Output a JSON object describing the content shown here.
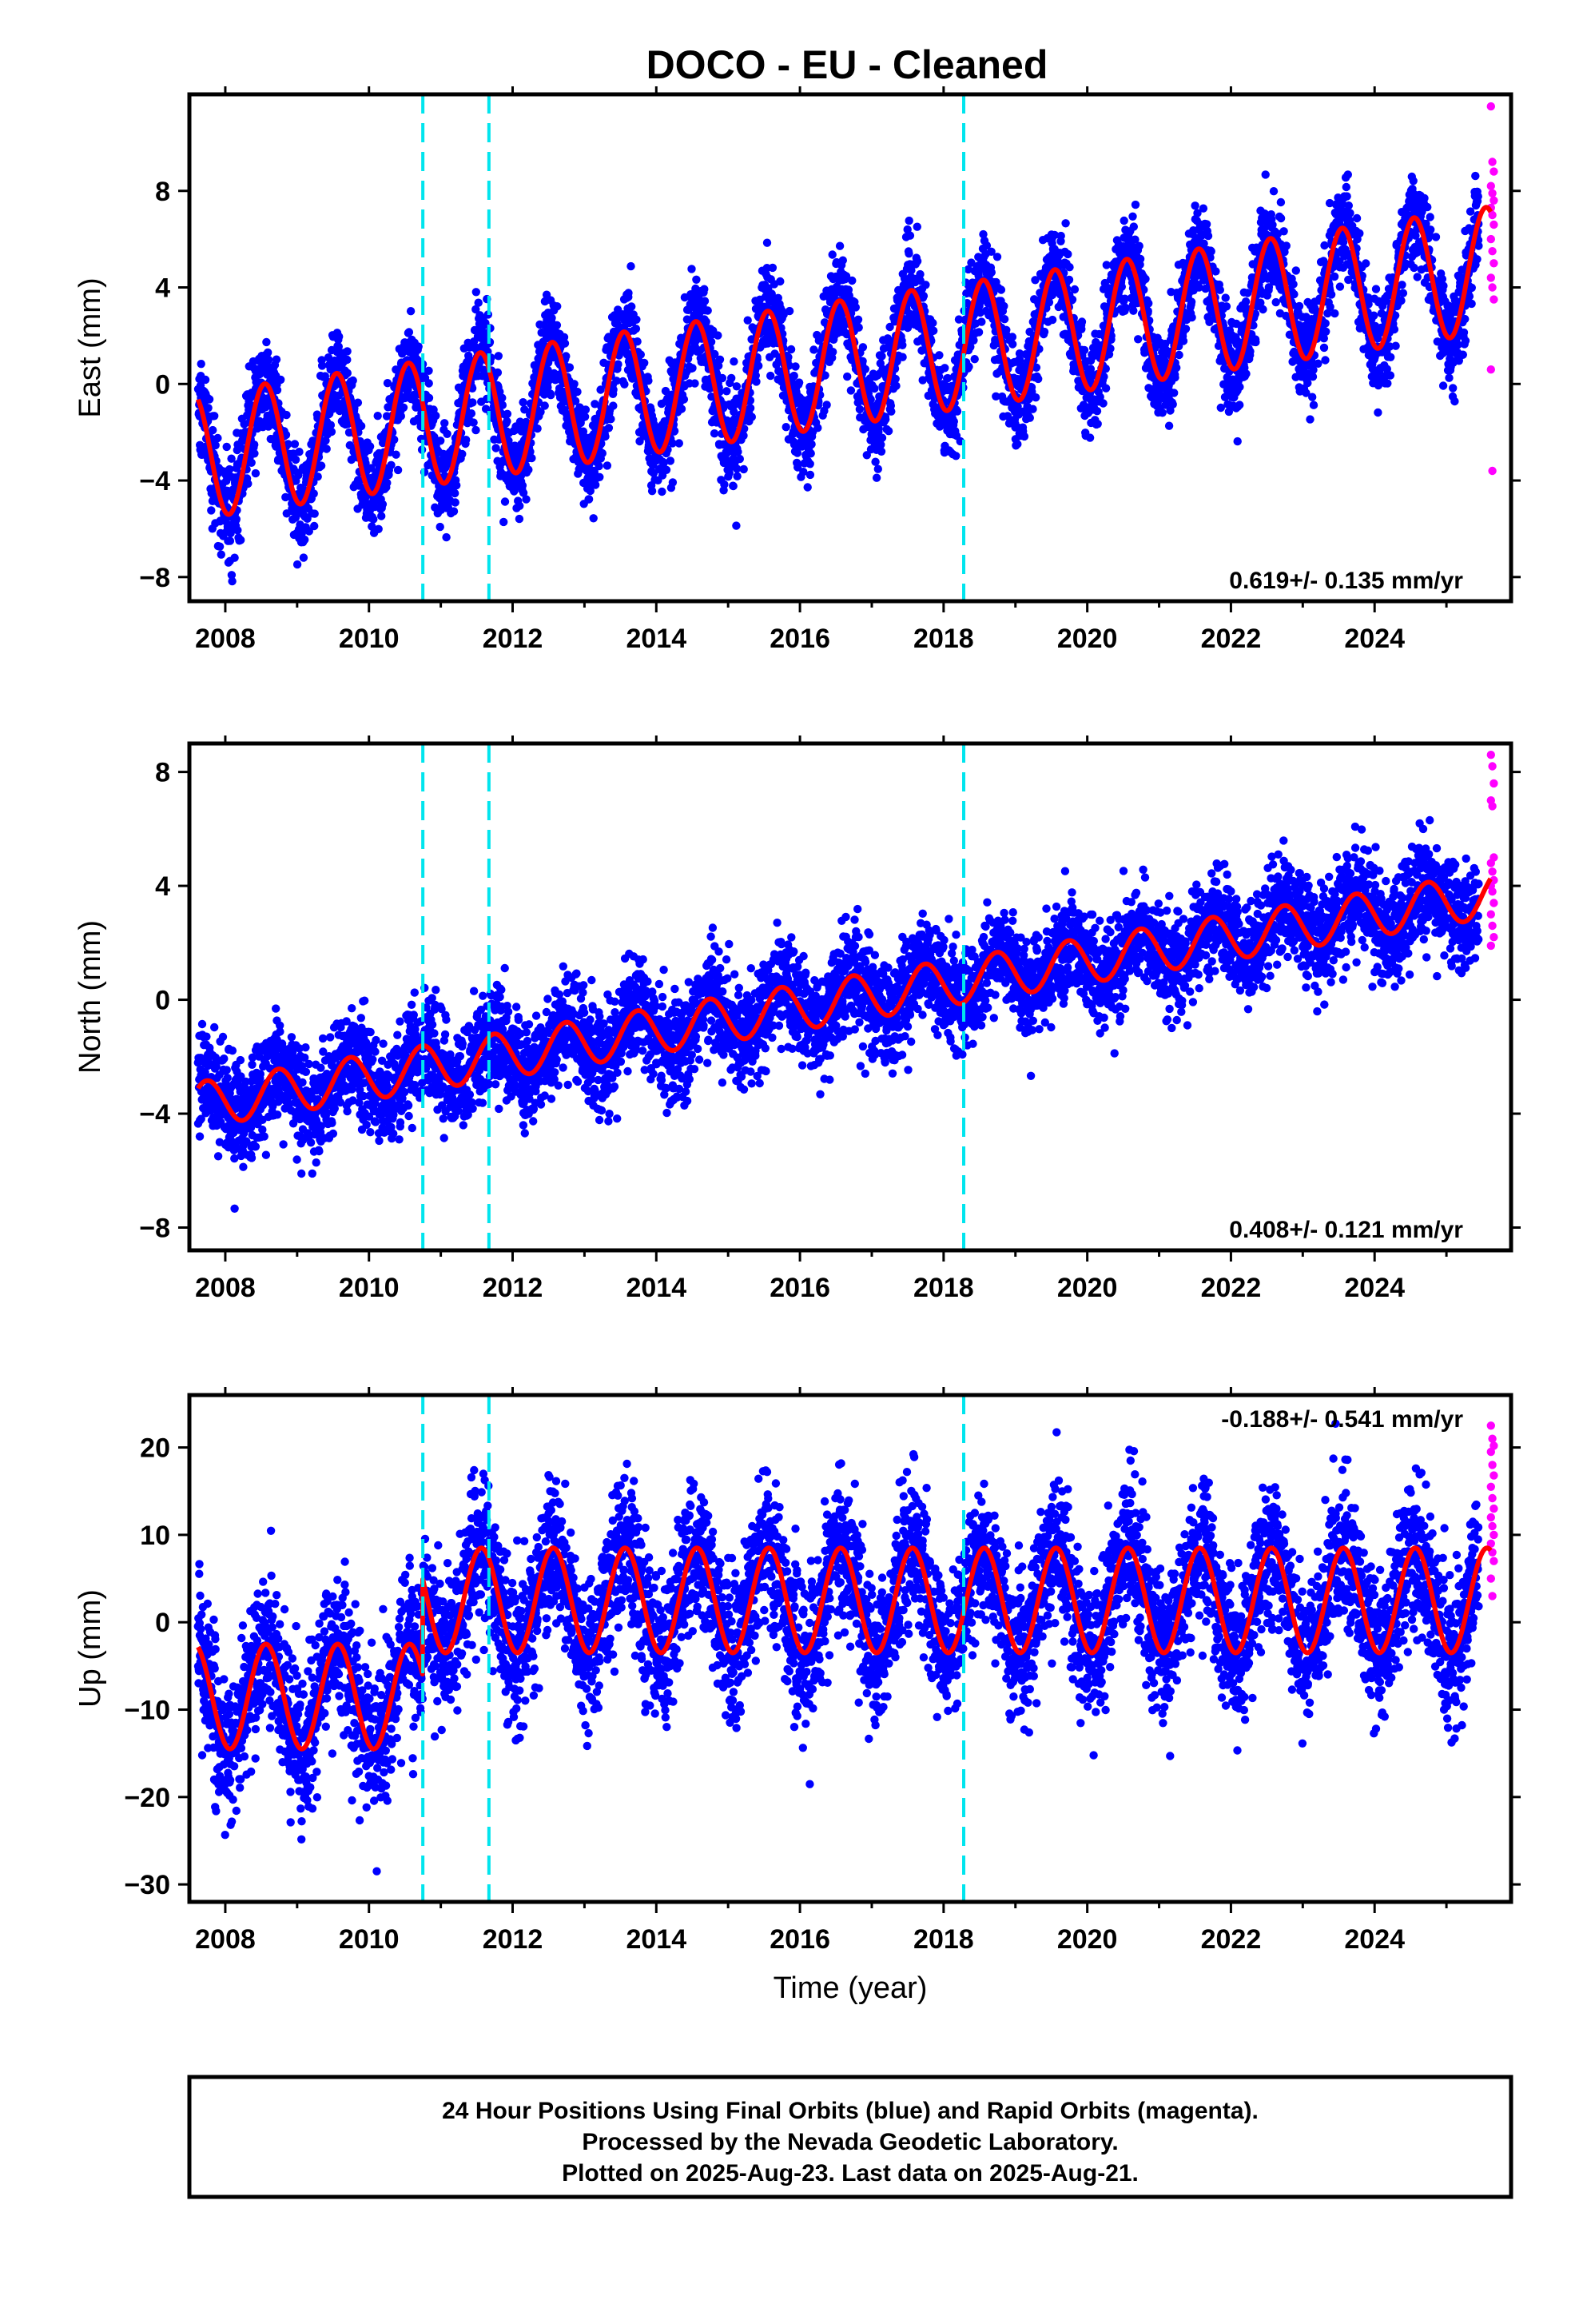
{
  "title": "DOCO  - EU - Cleaned",
  "footer": {
    "lines": [
      "24 Hour Positions Using Final Orbits (blue) and Rapid Orbits (magenta).",
      "Processed by the Nevada Geodetic Laboratory.",
      "Plotted on 2025-Aug-23. Last data on 2025-Aug-21."
    ]
  },
  "colors": {
    "final_orbits": "#0000ff",
    "rapid_orbits": "#ff00ff",
    "model_fit": "#ff0000",
    "equipment_change": "#00e5ee"
  },
  "chart_data": [
    {
      "type": "scatter",
      "name": "east-panel",
      "xlabel": "",
      "ylabel": "East (mm)",
      "xlim": [
        2007.5,
        2025.9
      ],
      "ylim": [
        -9,
        12
      ],
      "xticks": [
        2008,
        2010,
        2012,
        2014,
        2016,
        2018,
        2020,
        2022,
        2024
      ],
      "yticks": [
        -8,
        -4,
        0,
        4,
        8
      ],
      "rate_label": "0.619+/- 0.135 mm/yr",
      "grid": false,
      "offset_lines": [
        2010.75,
        2011.67,
        2018.28
      ],
      "model": {
        "intercept": -3.0,
        "slope": 0.43,
        "amplitude": 2.6,
        "phase": 4.4,
        "offsets": []
      },
      "noise_sd": 1.0,
      "rapid_y": [
        11.5,
        9.2,
        8.8,
        8.2,
        7.9,
        7.6,
        7.3,
        7.0,
        6.6,
        6.0,
        5.5,
        5.0,
        4.4,
        4.0,
        3.5,
        0.6,
        -3.6
      ]
    },
    {
      "type": "scatter",
      "name": "north-panel",
      "xlabel": "",
      "ylabel": "North (mm)",
      "xlim": [
        2007.5,
        2025.9
      ],
      "ylim": [
        -8.8,
        9.0
      ],
      "xticks": [
        2008,
        2010,
        2012,
        2014,
        2016,
        2018,
        2020,
        2022,
        2024
      ],
      "yticks": [
        -8,
        -4,
        0,
        4,
        8
      ],
      "rate_label": "0.408+/- 0.121 mm/yr",
      "grid": false,
      "offset_lines": [
        2010.75,
        2011.67,
        2018.28
      ],
      "model": {
        "intercept": -3.7,
        "slope": 0.41,
        "amplitude": 0.8,
        "phase": 3.2,
        "offsets": []
      },
      "noise_sd": 0.9,
      "rapid_y": [
        8.6,
        8.2,
        7.6,
        7.0,
        6.8,
        5.0,
        4.8,
        4.5,
        4.2,
        4.0,
        3.8,
        3.4,
        3.0,
        2.6,
        2.2,
        1.9
      ]
    },
    {
      "type": "scatter",
      "name": "up-panel",
      "xlabel": "Time (year)",
      "ylabel": "Up (mm)",
      "xlim": [
        2007.5,
        2025.9
      ],
      "ylim": [
        -32,
        26
      ],
      "xticks": [
        2008,
        2010,
        2012,
        2014,
        2016,
        2018,
        2020,
        2022,
        2024
      ],
      "yticks": [
        -30,
        -20,
        -10,
        0,
        10,
        20
      ],
      "rate_label": "-0.188+/- 0.541 mm/yr",
      "grid": false,
      "offset_lines": [
        2010.75,
        2011.67,
        2018.28
      ],
      "model": {
        "intercept": -8.5,
        "slope": 0.0,
        "amplitude": 6.0,
        "phase": 4.3,
        "offsets": [
          [
            2010.75,
            11.0
          ]
        ]
      },
      "noise_sd": 4.2,
      "rapid_y": [
        22.5,
        21.0,
        20.2,
        19.5,
        18.0,
        16.8,
        15.5,
        14.2,
        13.0,
        12.0,
        11.0,
        10.0,
        9.0,
        8.0,
        7.0,
        5.0,
        3.0
      ]
    }
  ]
}
